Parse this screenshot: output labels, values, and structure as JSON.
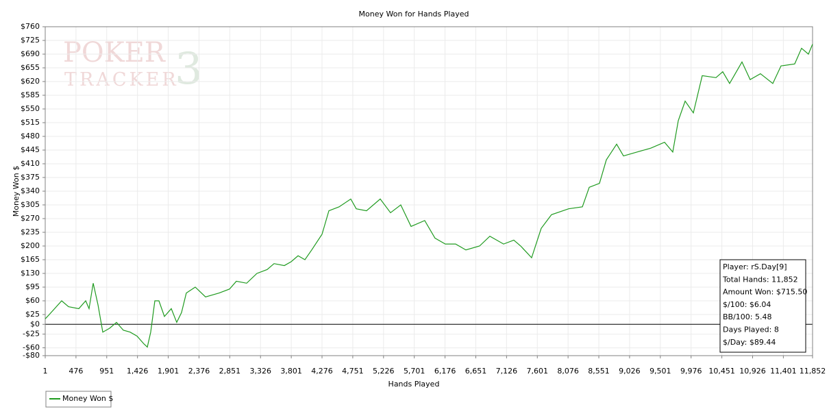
{
  "chart_data": {
    "type": "line",
    "title": "Money Won for Hands Played",
    "x_label": "Hands Played",
    "y_label": "Money Won $",
    "watermark": [
      "POKER",
      "TRACKER",
      "3"
    ],
    "xlim": [
      1,
      11852
    ],
    "ylim": [
      -80,
      760
    ],
    "xticks": [
      1,
      476,
      951,
      {
        "value": 1426,
        "label": "1,426"
      },
      {
        "value": 1901,
        "label": "1,901"
      },
      {
        "value": 2376,
        "label": "2,376"
      },
      {
        "value": 2851,
        "label": "2,851"
      },
      {
        "value": 3326,
        "label": "3,326"
      },
      {
        "value": 3801,
        "label": "3,801"
      },
      {
        "value": 4276,
        "label": "4,276"
      },
      {
        "value": 4751,
        "label": "4,751"
      },
      {
        "value": 5226,
        "label": "5,226"
      },
      {
        "value": 5701,
        "label": "5,701"
      },
      {
        "value": 6176,
        "label": "6,176"
      },
      {
        "value": 6651,
        "label": "6,651"
      },
      {
        "value": 7126,
        "label": "7,126"
      },
      {
        "value": 7601,
        "label": "7,601"
      },
      {
        "value": 8076,
        "label": "8,076"
      },
      {
        "value": 8551,
        "label": "8,551"
      },
      {
        "value": 9026,
        "label": "9,026"
      },
      {
        "value": 9501,
        "label": "9,501"
      },
      {
        "value": 9976,
        "label": "9,976"
      },
      {
        "value": 10451,
        "label": "10,451"
      },
      {
        "value": 10926,
        "label": "10,926"
      },
      {
        "value": 11401,
        "label": "11,401"
      },
      {
        "value": 11852,
        "label": "11,852"
      }
    ],
    "yticks": [
      {
        "value": -80,
        "label": "-$80"
      },
      {
        "value": -60,
        "label": "-$60"
      },
      {
        "value": -25,
        "label": "-$25"
      },
      {
        "value": 0,
        "label": "$0"
      },
      {
        "value": 25,
        "label": "$25"
      },
      {
        "value": 60,
        "label": "$60"
      },
      {
        "value": 95,
        "label": "$95"
      },
      {
        "value": 130,
        "label": "$130"
      },
      {
        "value": 165,
        "label": "$165"
      },
      {
        "value": 200,
        "label": "$200"
      },
      {
        "value": 235,
        "label": "$235"
      },
      {
        "value": 270,
        "label": "$270"
      },
      {
        "value": 305,
        "label": "$305"
      },
      {
        "value": 340,
        "label": "$340"
      },
      {
        "value": 375,
        "label": "$375"
      },
      {
        "value": 410,
        "label": "$410"
      },
      {
        "value": 445,
        "label": "$445"
      },
      {
        "value": 480,
        "label": "$480"
      },
      {
        "value": 515,
        "label": "$515"
      },
      {
        "value": 550,
        "label": "$550"
      },
      {
        "value": 585,
        "label": "$585"
      },
      {
        "value": 620,
        "label": "$620"
      },
      {
        "value": 655,
        "label": "$655"
      },
      {
        "value": 690,
        "label": "$690"
      },
      {
        "value": 725,
        "label": "$725"
      },
      {
        "value": 760,
        "label": "$760"
      }
    ],
    "grid": true,
    "legend_position": "bottom-left",
    "x": [
      1,
      64,
      255,
      361,
      520,
      626,
      678,
      742,
      816,
      890,
      996,
      1102,
      1207,
      1313,
      1419,
      1525,
      1578,
      1630,
      1694,
      1757,
      1842,
      1948,
      2032,
      2106,
      2180,
      2318,
      2477,
      2688,
      2847,
      2953,
      3112,
      3271,
      3429,
      3535,
      3694,
      3800,
      3906,
      4012,
      4117,
      4276,
      4382,
      4540,
      4720,
      4805,
      4963,
      5175,
      5334,
      5492,
      5651,
      5862,
      6021,
      6180,
      6339,
      6498,
      6709,
      6868,
      7080,
      7238,
      7344,
      7513,
      7661,
      7820,
      8085,
      8297,
      8403,
      8561,
      8667,
      8826,
      8932,
      9143,
      9354,
      9566,
      9693,
      9778,
      9884,
      10011,
      10148,
      10360,
      10465,
      10571,
      10762,
      10888,
      11047,
      11238,
      11365,
      11576,
      11682,
      11788,
      11852
    ],
    "series": [
      {
        "name": "Money Won $",
        "color": "#1e9a1e",
        "values": [
          14,
          25,
          60,
          45,
          40,
          60,
          40,
          105,
          50,
          -20,
          -10,
          5,
          -15,
          -20,
          -30,
          -50,
          -58,
          -20,
          60,
          60,
          20,
          40,
          5,
          30,
          80,
          95,
          70,
          80,
          90,
          110,
          105,
          130,
          140,
          155,
          150,
          160,
          175,
          165,
          190,
          230,
          290,
          300,
          320,
          295,
          290,
          320,
          285,
          305,
          250,
          265,
          220,
          205,
          205,
          190,
          200,
          225,
          205,
          215,
          200,
          170,
          245,
          280,
          295,
          300,
          350,
          360,
          420,
          460,
          430,
          440,
          450,
          465,
          440,
          520,
          570,
          540,
          635,
          630,
          645,
          615,
          670,
          625,
          640,
          615,
          660,
          665,
          705,
          690,
          715.5
        ]
      }
    ],
    "info_box": [
      "Player: rS.Day[9]",
      "Total Hands: 11,852",
      "Amount Won: $715.50",
      "$/100: $6.04",
      "BB/100: 5.48",
      "Days Played: 8",
      "$/Day: $89.44"
    ]
  }
}
